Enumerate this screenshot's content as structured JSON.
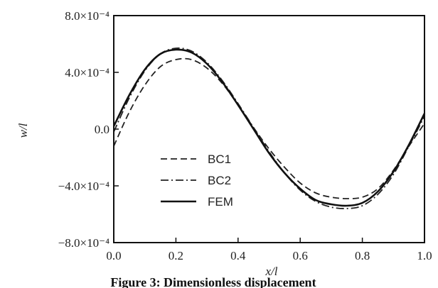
{
  "chart_data": {
    "type": "line",
    "caption": "Figure 3: Dimensionless displacement",
    "xlabel": "x/l",
    "ylabel": "w/l",
    "xlim": [
      0.0,
      1.0
    ],
    "ylim": [
      -0.0008,
      0.0008
    ],
    "x_ticks": [
      0.0,
      0.2,
      0.4,
      0.6,
      0.8,
      1.0
    ],
    "x_tick_labels": [
      "0.0",
      "0.2",
      "0.4",
      "0.6",
      "0.8",
      "1.0"
    ],
    "y_ticks": [
      0.0008,
      0.0004,
      0.0,
      -0.0004,
      -0.0008
    ],
    "y_tick_labels": [
      "8.0×10⁻⁴",
      "4.0×10⁻⁴",
      "0.0",
      "−4.0×10⁻⁴",
      "−8.0×10⁻⁴"
    ],
    "grid": false,
    "legend_position": "center-left",
    "series": [
      {
        "name": "BC1",
        "style": "dashed",
        "color": "#222222",
        "x": [
          0.0,
          0.05,
          0.1,
          0.15,
          0.2,
          0.25,
          0.3,
          0.35,
          0.4,
          0.45,
          0.5,
          0.55,
          0.6,
          0.65,
          0.7,
          0.75,
          0.8,
          0.85,
          0.9,
          0.95,
          1.0
        ],
        "y": [
          -0.00012,
          0.00012,
          0.00031,
          0.00044,
          0.00049,
          0.00049,
          0.00043,
          0.00032,
          0.00017,
          1e-05,
          -0.00014,
          -0.00027,
          -0.00038,
          -0.00045,
          -0.00048,
          -0.00049,
          -0.00048,
          -0.00042,
          -0.00029,
          -0.00012,
          4e-05
        ]
      },
      {
        "name": "BC2",
        "style": "dashdot",
        "color": "#222222",
        "x": [
          0.0,
          0.05,
          0.1,
          0.15,
          0.2,
          0.25,
          0.3,
          0.35,
          0.4,
          0.45,
          0.5,
          0.55,
          0.6,
          0.65,
          0.7,
          0.75,
          0.8,
          0.85,
          0.9,
          0.95,
          1.0
        ],
        "y": [
          -2e-05,
          0.00022,
          0.00041,
          0.00053,
          0.00057,
          0.00055,
          0.00047,
          0.00034,
          0.00018,
          1e-05,
          -0.00016,
          -0.00031,
          -0.00043,
          -0.00051,
          -0.00055,
          -0.00056,
          -0.00054,
          -0.00046,
          -0.00032,
          -0.00012,
          9e-05
        ]
      },
      {
        "name": "FEM",
        "style": "solid",
        "color": "#111111",
        "x": [
          0.0,
          0.05,
          0.1,
          0.15,
          0.2,
          0.25,
          0.3,
          0.35,
          0.4,
          0.45,
          0.5,
          0.55,
          0.6,
          0.65,
          0.7,
          0.75,
          0.8,
          0.85,
          0.9,
          0.95,
          1.0
        ],
        "y": [
          2e-05,
          0.00024,
          0.00042,
          0.00053,
          0.00056,
          0.00054,
          0.00046,
          0.00033,
          0.00017,
          0.0,
          -0.00017,
          -0.00031,
          -0.00042,
          -0.0005,
          -0.00053,
          -0.00054,
          -0.00052,
          -0.00044,
          -0.0003,
          -0.00011,
          0.00011
        ]
      }
    ]
  }
}
